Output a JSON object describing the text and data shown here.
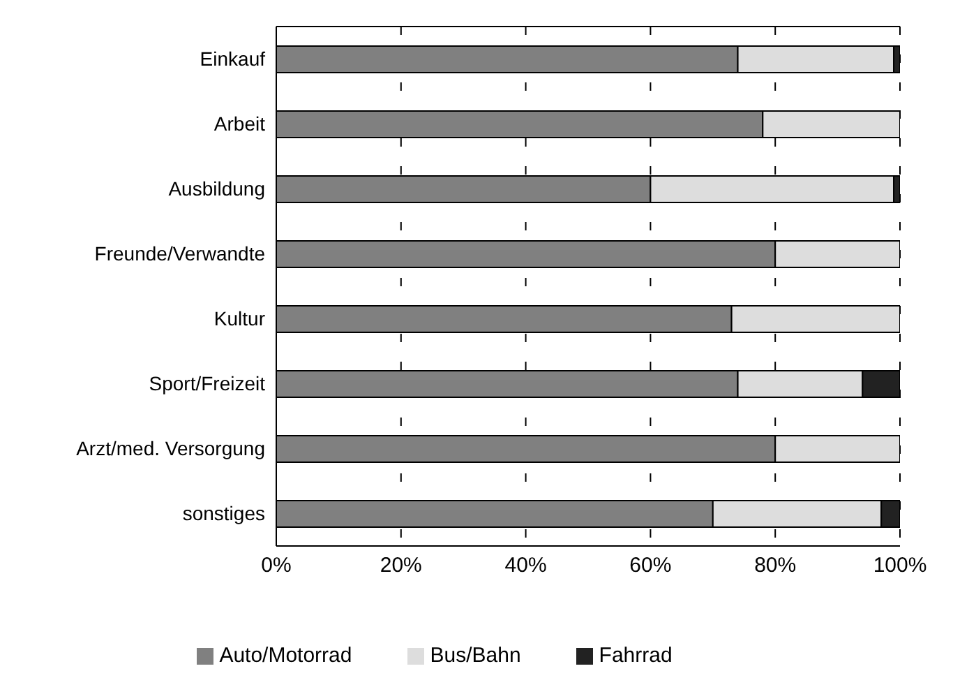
{
  "chart_data": {
    "type": "bar",
    "orientation": "horizontal",
    "stacked": true,
    "categories": [
      "Einkauf",
      "Arbeit",
      "Ausbildung",
      "Freunde/Verwandte",
      "Kultur",
      "Sport/Freizeit",
      "Arzt/med. Versorgung",
      "sonstiges"
    ],
    "series": [
      {
        "name": "Auto/Motorrad",
        "color": "#808080",
        "values": [
          74,
          78,
          60,
          80,
          73,
          74,
          80,
          70
        ]
      },
      {
        "name": "Bus/Bahn",
        "color": "#dddddd",
        "values": [
          25,
          22,
          39,
          20,
          27,
          20,
          20,
          27
        ]
      },
      {
        "name": "Fahrrad",
        "color": "#222222",
        "values": [
          1,
          0,
          1,
          0,
          0,
          6,
          0,
          3
        ]
      }
    ],
    "xlim": [
      0,
      100
    ],
    "xticks": [
      {
        "value": 0,
        "label": "0%"
      },
      {
        "value": 20,
        "label": "20%"
      },
      {
        "value": 40,
        "label": "40%"
      },
      {
        "value": 60,
        "label": "60%"
      },
      {
        "value": 80,
        "label": "80%"
      },
      {
        "value": 100,
        "label": "100%"
      }
    ],
    "grid": "x",
    "legend": "bottom"
  }
}
